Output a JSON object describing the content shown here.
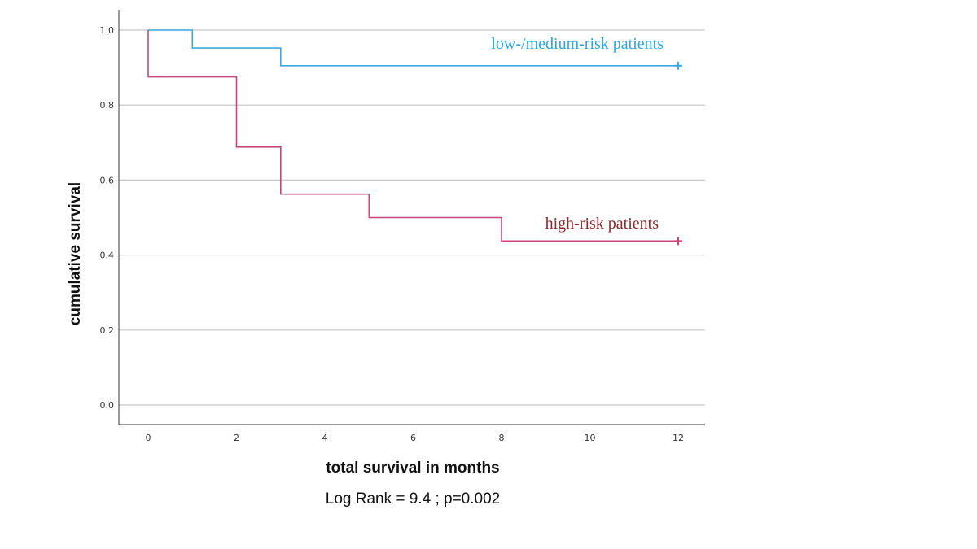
{
  "chart_data": {
    "type": "line",
    "step": true,
    "xlabel": "total survival in months",
    "ylabel": "cumulative survival",
    "xlim": [
      -0.65,
      12.6
    ],
    "ylim": [
      -0.055,
      1.055
    ],
    "x_ticks": [
      0,
      2,
      4,
      6,
      8,
      10,
      12
    ],
    "y_ticks": [
      0.0,
      0.2,
      0.4,
      0.6,
      0.8,
      1.0
    ],
    "x_tick_labels": [
      "0",
      "2",
      "4",
      "6",
      "8",
      "10",
      "12"
    ],
    "y_tick_labels": [
      "0.0",
      "0.2",
      "0.4",
      "0.6",
      "0.8",
      "1.0"
    ],
    "grid": "horizontal",
    "footnote": "Log Rank = 9.4 ; p=0.002",
    "series": [
      {
        "name": "low-/medium-risk patients",
        "color": "#3aaae4",
        "label_color": "#2aa6e0",
        "x": [
          0,
          1,
          3,
          12
        ],
        "y": [
          1.0,
          0.952,
          0.905,
          0.905
        ],
        "censored": [
          [
            12,
            0.905
          ]
        ]
      },
      {
        "name": "high-risk patients",
        "color": "#c8477a",
        "label_color": "#8c2a2a",
        "x": [
          0,
          2,
          3,
          5,
          8,
          12
        ],
        "y": [
          0.875,
          0.688,
          0.5625,
          0.5,
          0.4375,
          0.4375
        ],
        "drop_from": 1.0,
        "censored": [
          [
            12,
            0.4375
          ]
        ]
      }
    ]
  }
}
